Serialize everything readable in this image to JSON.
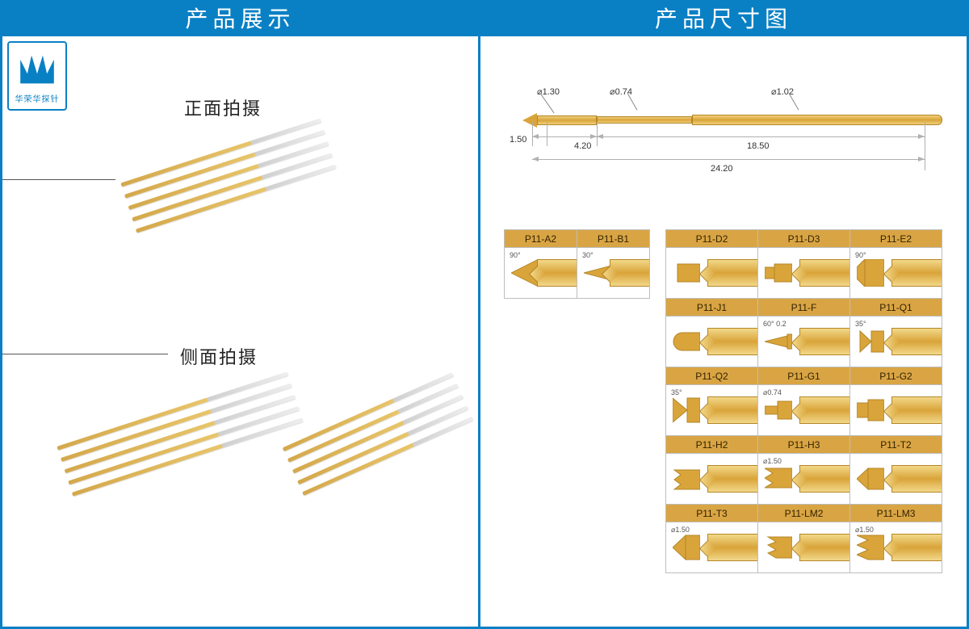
{
  "headers": {
    "left": "产品展示",
    "right": "产品尺寸图"
  },
  "logo_text": "华荣华探针",
  "shot_labels": {
    "front": "正面拍摄",
    "side": "侧面拍摄"
  },
  "diagram": {
    "d_tip": "⌀1.30",
    "d_thin": "⌀0.74",
    "d_barrel": "⌀1.02",
    "len_tip": "1.50",
    "len_head": "4.20",
    "len_barrel": "18.50",
    "len_total": "24.20",
    "colors": {
      "gold_light": "#f2d889",
      "gold_dark": "#d9a43a",
      "gold_border": "#b48627",
      "dim_line": "#b0b0b0",
      "cell_border": "#bdbdbd",
      "header_bg": "#d9a544",
      "page_border": "#0a80c4"
    }
  },
  "tips_left": [
    {
      "code": "P11-A2",
      "note": "90°",
      "kind": "cone-wide"
    },
    {
      "code": "P11-B1",
      "note": "30°",
      "kind": "cone-narrow"
    }
  ],
  "tips_right": [
    [
      {
        "code": "P11-D2",
        "note": "",
        "kind": "flat"
      },
      {
        "code": "P11-D3",
        "note": "",
        "kind": "flat-step"
      },
      {
        "code": "P11-E2",
        "note": "90°",
        "kind": "chisel"
      }
    ],
    [
      {
        "code": "P11-J1",
        "note": "",
        "kind": "round"
      },
      {
        "code": "P11-F",
        "note": "60° 0.2",
        "kind": "spear"
      },
      {
        "code": "P11-Q1",
        "note": "35°",
        "kind": "crown-2"
      }
    ],
    [
      {
        "code": "P11-Q2",
        "note": "35°",
        "kind": "crown-2b"
      },
      {
        "code": "P11-G1",
        "note": "⌀0.74",
        "kind": "step"
      },
      {
        "code": "P11-G2",
        "note": "",
        "kind": "step-wide"
      }
    ],
    [
      {
        "code": "P11-H2",
        "note": "",
        "kind": "serrated"
      },
      {
        "code": "P11-H3",
        "note": "⌀1.50",
        "kind": "serrated-wide"
      },
      {
        "code": "P11-T2",
        "note": "",
        "kind": "point"
      }
    ],
    [
      {
        "code": "P11-T3",
        "note": "⌀1.50",
        "kind": "point-wide"
      },
      {
        "code": "P11-LM2",
        "note": "",
        "kind": "multi"
      },
      {
        "code": "P11-LM3",
        "note": "⌀1.50",
        "kind": "multi-wide"
      }
    ]
  ]
}
